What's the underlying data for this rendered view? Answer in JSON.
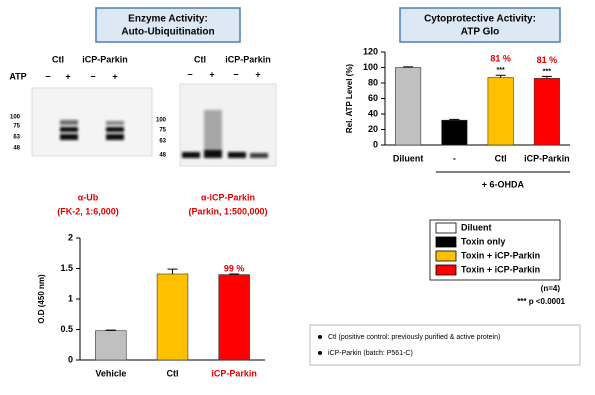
{
  "header_left": {
    "title": "Enzyme Activity:",
    "subtitle": "Auto-Ubiquitination"
  },
  "header_right": {
    "title": "Cytoprotective Activity:",
    "subtitle": "ATP Glo"
  },
  "blots": [
    {
      "lanes": [
        "Ctl",
        "iCP-Parkin"
      ],
      "treatment": "ATP",
      "signs": [
        "−",
        "+",
        "−",
        "+"
      ],
      "markers": [
        "100",
        "75",
        "63",
        "48"
      ],
      "antibody": "α-Ub",
      "dilution": "(FK-2, 1:6,000)"
    },
    {
      "lanes": [
        "Ctl",
        "iCP-Parkin"
      ],
      "signs": [
        "−",
        "+",
        "−",
        "+"
      ],
      "markers": [
        "100",
        "75",
        "63",
        "48"
      ],
      "antibody": "α-iCP-Parkin",
      "dilution": "(Parkin, 1:500,000)"
    }
  ],
  "chart_data": [
    {
      "type": "bar",
      "ylabel": "O.D (450 nm)",
      "categories": [
        "Vehicle",
        "Ctl",
        "iCP-Parkin"
      ],
      "category_colors": [
        "#000000",
        "#000000",
        "#e00000"
      ],
      "values": [
        0.48,
        1.41,
        1.4
      ],
      "errors": [
        0.01,
        0.08,
        0.01
      ],
      "colors": [
        "#c0c0c0",
        "#ffc000",
        "#ff0000"
      ],
      "ylim": [
        0,
        2
      ],
      "yticks": [
        0,
        0.5,
        1,
        1.5,
        2
      ],
      "annotations": [
        {
          "index": 2,
          "text": "99 %"
        }
      ]
    },
    {
      "type": "bar",
      "ylabel": "Rel. ATP Level (%)",
      "categories": [
        "Diluent",
        "-",
        "Ctl",
        "iCP-Parkin"
      ],
      "category_colors": [
        "#000000",
        "#000000",
        "#000000",
        "#000000"
      ],
      "values": [
        100,
        32,
        87,
        86
      ],
      "errors": [
        0.8,
        1,
        3,
        2.5
      ],
      "colors": [
        "#c0c0c0",
        "#000000",
        "#ffc000",
        "#ff0000"
      ],
      "ylim": [
        0,
        120
      ],
      "yticks": [
        0,
        20,
        40,
        60,
        80,
        100,
        120
      ],
      "group_label": "+ 6-OHDA",
      "annotations": [
        {
          "index": 2,
          "text": "81 %",
          "stars": "***"
        },
        {
          "index": 3,
          "text": "81 %",
          "stars": "***"
        }
      ]
    }
  ],
  "legend": [
    {
      "label": "Diluent",
      "color": "#ffffff"
    },
    {
      "label": "Toxin only",
      "color": "#000000"
    },
    {
      "label": "Toxin + iCP-Parkin",
      "color": "#ffc000"
    },
    {
      "label": "Toxin + iCP-Parkin",
      "color": "#ff0000"
    }
  ],
  "n_note": "(n=4)",
  "p_note": "*** p <0.0001",
  "notes": [
    "Ctl (positive control: previously purified & active protein)",
    "iCP-Parkin (batch: P561-C)"
  ]
}
